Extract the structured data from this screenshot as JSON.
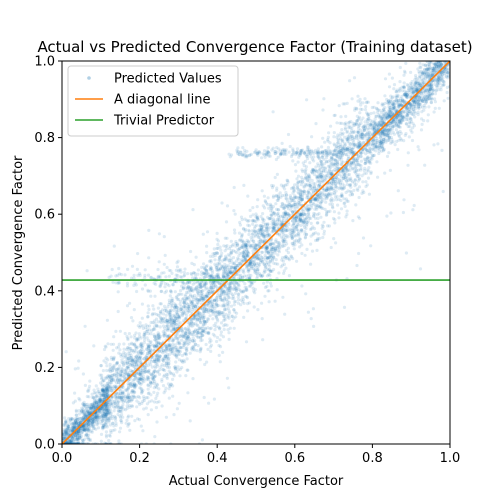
{
  "chart_data": {
    "type": "scatter",
    "title": "Actual vs Predicted Convergence Factor (Training dataset)",
    "xlabel": "Actual Convergence Factor",
    "ylabel": "Predicted Convergence Factor",
    "xlim": [
      0.0,
      1.0
    ],
    "ylim": [
      0.0,
      1.0
    ],
    "x_ticks": [
      "0.0",
      "0.2",
      "0.4",
      "0.6",
      "0.8",
      "1.0"
    ],
    "y_ticks": [
      "0.0",
      "0.2",
      "0.4",
      "0.6",
      "0.8",
      "1.0"
    ],
    "grid": false,
    "legend_position": "top-left",
    "series": [
      {
        "name": "Predicted Values",
        "kind": "scatter",
        "color": "#1f77b4",
        "alpha": 0.15,
        "clusters": [
          {
            "x_range": [
              0.0,
              0.12
            ],
            "slope": 1.0,
            "intercept": 0.0,
            "spread": 0.025,
            "weight": 0.14
          },
          {
            "x_range": [
              0.1,
              0.45
            ],
            "slope": 1.0,
            "intercept": 0.0,
            "spread": 0.06,
            "weight": 0.32
          },
          {
            "x_range": [
              0.45,
              0.8
            ],
            "slope": 1.0,
            "intercept": 0.0,
            "spread": 0.055,
            "weight": 0.3
          },
          {
            "x_range": [
              0.8,
              1.0
            ],
            "slope": 1.0,
            "intercept": 0.0,
            "spread": 0.03,
            "weight": 0.18
          },
          {
            "x_range": [
              0.0,
              1.0
            ],
            "slope": 1.0,
            "intercept": 0.0,
            "spread": 0.16,
            "weight": 0.06
          }
        ],
        "horizontal_streaks": [
          {
            "x_range": [
              0.12,
              0.45
            ],
            "y": 0.43,
            "spread": 0.02
          },
          {
            "x_range": [
              0.43,
              0.72
            ],
            "y": 0.76,
            "spread": 0.006
          }
        ]
      },
      {
        "name": "A diagonal line",
        "kind": "line",
        "color": "#ff7f0e",
        "x": [
          0.0,
          1.0
        ],
        "y": [
          0.0,
          1.0
        ]
      },
      {
        "name": "Trivial Predictor",
        "kind": "line",
        "color": "#2ca02c",
        "x": [
          0.0,
          1.0
        ],
        "y": [
          0.428,
          0.428
        ]
      }
    ]
  }
}
